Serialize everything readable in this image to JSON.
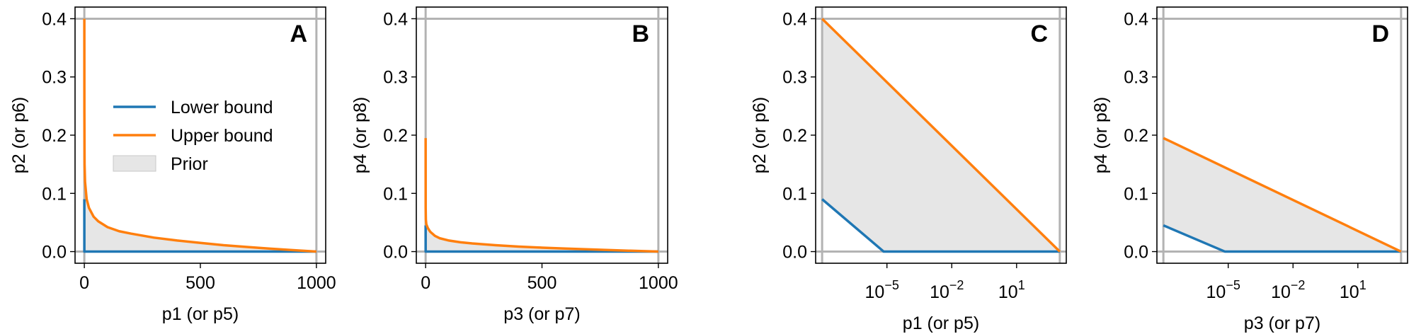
{
  "colors": {
    "lower": "#1f77b4",
    "upper": "#ff7f0e",
    "prior_fill": "#e6e6e6",
    "prior_edge": "#c8c8c8",
    "ref_line": "#b3b3b3"
  },
  "legend": {
    "items": [
      {
        "label": "Lower bound",
        "kind": "line",
        "color_key": "lower"
      },
      {
        "label": "Upper bound",
        "kind": "line",
        "color_key": "upper"
      },
      {
        "label": "Prior",
        "kind": "patch",
        "color_key": "prior_fill"
      }
    ],
    "location": "center-left, panel A"
  },
  "chart_data": [
    {
      "type": "line",
      "panel": "A",
      "xlabel": "p1 (or p5)",
      "ylabel": "p2 (or p6)",
      "xscale": "linear",
      "xlim": [
        -40,
        1040
      ],
      "ylim": [
        -0.02,
        0.42
      ],
      "xticks": [
        {
          "value": 0,
          "label": "0"
        },
        {
          "value": 500,
          "label": "500"
        },
        {
          "value": 1000,
          "label": "1000"
        }
      ],
      "yticks": [
        {
          "value": 0,
          "label": "0.0"
        },
        {
          "value": 0.1,
          "label": "0.1"
        },
        {
          "value": 0.2,
          "label": "0.2"
        },
        {
          "value": 0.3,
          "label": "0.3"
        },
        {
          "value": 0.4,
          "label": "0.4"
        }
      ],
      "reference_lines": {
        "x": [
          0,
          1000
        ],
        "y": [
          0,
          0.4
        ]
      },
      "series": [
        {
          "name": "Lower bound",
          "color_key": "lower",
          "points": [
            [
              0,
              0.09
            ],
            [
              1e-06,
              0.09
            ],
            [
              0.1,
              0
            ],
            [
              1000,
              0
            ]
          ]
        },
        {
          "name": "Upper bound",
          "color_key": "upper",
          "points": [
            [
              0,
              0.4
            ],
            [
              0.2,
              0.24
            ],
            [
              1,
              0.15
            ],
            [
              3,
              0.12
            ],
            [
              10,
              0.09
            ],
            [
              20,
              0.075
            ],
            [
              40,
              0.06
            ],
            [
              60,
              0.052
            ],
            [
              100,
              0.042
            ],
            [
              150,
              0.035
            ],
            [
              200,
              0.031
            ],
            [
              300,
              0.024
            ],
            [
              400,
              0.019
            ],
            [
              500,
              0.015
            ],
            [
              600,
              0.011
            ],
            [
              700,
              0.008
            ],
            [
              800,
              0.005
            ],
            [
              900,
              0.0025
            ],
            [
              1000,
              0
            ]
          ]
        }
      ],
      "prior_region": "between Lower bound and Upper bound"
    },
    {
      "type": "line",
      "panel": "B",
      "xlabel": "p3 (or p7)",
      "ylabel": "p4 (or p8)",
      "xscale": "linear",
      "xlim": [
        -40,
        1040
      ],
      "ylim": [
        -0.02,
        0.42
      ],
      "xticks": [
        {
          "value": 0,
          "label": "0"
        },
        {
          "value": 500,
          "label": "500"
        },
        {
          "value": 1000,
          "label": "1000"
        }
      ],
      "yticks": [
        {
          "value": 0,
          "label": "0.0"
        },
        {
          "value": 0.1,
          "label": "0.1"
        },
        {
          "value": 0.2,
          "label": "0.2"
        },
        {
          "value": 0.3,
          "label": "0.3"
        },
        {
          "value": 0.4,
          "label": "0.4"
        }
      ],
      "reference_lines": {
        "x": [
          0,
          1000
        ],
        "y": [
          0,
          0.4
        ]
      },
      "series": [
        {
          "name": "Lower bound",
          "color_key": "lower",
          "points": [
            [
              0,
              0.045
            ],
            [
              1e-06,
              0.045
            ],
            [
              0.1,
              0
            ],
            [
              1000,
              0
            ]
          ]
        },
        {
          "name": "Upper bound",
          "color_key": "upper",
          "points": [
            [
              0,
              0.195
            ],
            [
              0.2,
              0.075
            ],
            [
              1,
              0.055
            ],
            [
              3,
              0.047
            ],
            [
              10,
              0.04
            ],
            [
              20,
              0.034
            ],
            [
              40,
              0.027
            ],
            [
              60,
              0.023
            ],
            [
              100,
              0.019
            ],
            [
              150,
              0.016
            ],
            [
              200,
              0.014
            ],
            [
              300,
              0.011
            ],
            [
              400,
              0.0085
            ],
            [
              500,
              0.0068
            ],
            [
              600,
              0.0052
            ],
            [
              700,
              0.0038
            ],
            [
              800,
              0.0025
            ],
            [
              900,
              0.0012
            ],
            [
              1000,
              0
            ]
          ]
        }
      ],
      "prior_region": "between Lower bound and Upper bound"
    },
    {
      "type": "line",
      "panel": "C",
      "xlabel": "p1 (or p5)",
      "ylabel": "p2 (or p6)",
      "xscale": "log",
      "xlim_log10": [
        -8.3,
        3.3
      ],
      "ylim": [
        -0.02,
        0.42
      ],
      "xticks": [
        {
          "value": -5,
          "base": "10",
          "exp": "−5"
        },
        {
          "value": -2,
          "base": "10",
          "exp": "−2"
        },
        {
          "value": 1,
          "base": "10",
          "exp": "1"
        }
      ],
      "yticks": [
        {
          "value": 0,
          "label": "0.0"
        },
        {
          "value": 0.1,
          "label": "0.1"
        },
        {
          "value": 0.2,
          "label": "0.2"
        },
        {
          "value": 0.3,
          "label": "0.3"
        },
        {
          "value": 0.4,
          "label": "0.4"
        }
      ],
      "reference_lines": {
        "x_log10": [
          -8,
          3
        ],
        "y": [
          0,
          0.4
        ]
      },
      "series": [
        {
          "name": "Lower bound",
          "color_key": "lower",
          "points_log10x": [
            [
              -8,
              0.09
            ],
            [
              -5.15,
              0
            ],
            [
              3,
              0
            ]
          ]
        },
        {
          "name": "Upper bound",
          "color_key": "upper",
          "points_log10x": [
            [
              -8,
              0.4
            ],
            [
              3,
              0
            ]
          ]
        }
      ],
      "prior_region": "between Lower bound and Upper bound"
    },
    {
      "type": "line",
      "panel": "D",
      "xlabel": "p3 (or p7)",
      "ylabel": "p4 (or p8)",
      "xscale": "log",
      "xlim_log10": [
        -8.3,
        3.3
      ],
      "ylim": [
        -0.02,
        0.42
      ],
      "xticks": [
        {
          "value": -5,
          "base": "10",
          "exp": "−5"
        },
        {
          "value": -2,
          "base": "10",
          "exp": "−2"
        },
        {
          "value": 1,
          "base": "10",
          "exp": "1"
        }
      ],
      "yticks": [
        {
          "value": 0,
          "label": "0.0"
        },
        {
          "value": 0.1,
          "label": "0.1"
        },
        {
          "value": 0.2,
          "label": "0.2"
        },
        {
          "value": 0.3,
          "label": "0.3"
        },
        {
          "value": 0.4,
          "label": "0.4"
        }
      ],
      "reference_lines": {
        "x_log10": [
          -8,
          3
        ],
        "y": [
          0,
          0.4
        ]
      },
      "series": [
        {
          "name": "Lower bound",
          "color_key": "lower",
          "points_log10x": [
            [
              -8,
              0.045
            ],
            [
              -5.15,
              0
            ],
            [
              3,
              0
            ]
          ]
        },
        {
          "name": "Upper bound",
          "color_key": "upper",
          "points_log10x": [
            [
              -8,
              0.195
            ],
            [
              3,
              0
            ]
          ]
        }
      ],
      "prior_region": "between Lower bound and Upper bound"
    }
  ]
}
